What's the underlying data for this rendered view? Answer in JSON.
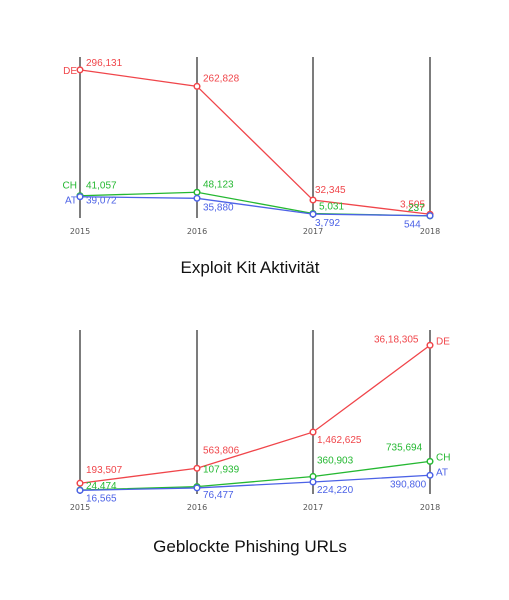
{
  "colors": {
    "DE": "#f0454a",
    "CH": "#25b832",
    "AT": "#4c62e6",
    "axis": "#444444"
  },
  "chart_data": [
    {
      "type": "line",
      "title": "Exploit Kit Aktivität",
      "categories": [
        "2015",
        "2016",
        "2017",
        "2018"
      ],
      "series": [
        {
          "name": "DE",
          "values": [
            296131,
            262828,
            32345,
            3505
          ],
          "labels": [
            "296,131",
            "262,828",
            "32,345",
            "3,505"
          ]
        },
        {
          "name": "CH",
          "values": [
            41057,
            48123,
            5031,
            237
          ],
          "labels": [
            "41,057",
            "48,123",
            "5,031",
            "237"
          ]
        },
        {
          "name": "AT",
          "values": [
            39072,
            35880,
            3792,
            544
          ],
          "labels": [
            "39,072",
            "35,880",
            "3,792",
            "544"
          ]
        }
      ],
      "ylim": [
        0,
        300000
      ],
      "grid": false,
      "legend": "left"
    },
    {
      "type": "line",
      "title": "Geblockte Phishing URLs",
      "categories": [
        "2015",
        "2016",
        "2017",
        "2018"
      ],
      "series": [
        {
          "name": "DE",
          "values": [
            193507,
            563806,
            1462625,
            3618305
          ],
          "labels": [
            "193,507",
            "563,806",
            "1,462,625",
            "36,18,305"
          ]
        },
        {
          "name": "CH",
          "values": [
            24474,
            107939,
            360903,
            735694
          ],
          "labels": [
            "24,474",
            "107,939",
            "360,903",
            "735,694"
          ]
        },
        {
          "name": "AT",
          "values": [
            16565,
            76477,
            224220,
            390800
          ],
          "labels": [
            "16,565",
            "76,477",
            "224,220",
            "390,800"
          ]
        }
      ],
      "ylim": [
        0,
        3700000
      ],
      "grid": false,
      "legend": "right"
    }
  ]
}
